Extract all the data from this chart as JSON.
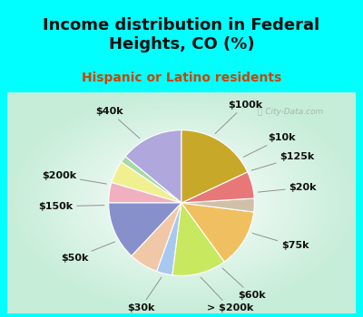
{
  "title": "Income distribution in Federal\nHeights, CO (%)",
  "subtitle": "Hispanic or Latino residents",
  "bg_color": "#00ffff",
  "chart_bg_top": "#e8f8f0",
  "chart_bg_bottom": "#c8ecd8",
  "watermark": "ⓘ City-Data.com",
  "slices": [
    {
      "label": "$100k",
      "value": 14.0,
      "color": "#b0a8dc"
    },
    {
      "label": "$10k",
      "value": 1.5,
      "color": "#a8d8a8"
    },
    {
      "label": "$125k",
      "value": 5.0,
      "color": "#f0f090"
    },
    {
      "label": "$20k",
      "value": 4.5,
      "color": "#f0b0c0"
    },
    {
      "label": "$75k",
      "value": 13.0,
      "color": "#8890cc"
    },
    {
      "label": "$60k",
      "value": 6.5,
      "color": "#f0c8a8"
    },
    {
      "label": "> $200k",
      "value": 3.5,
      "color": "#a8c8f0"
    },
    {
      "label": "$30k",
      "value": 12.0,
      "color": "#c8e860"
    },
    {
      "label": "$50k",
      "value": 13.0,
      "color": "#f0c060"
    },
    {
      "label": "$150k",
      "value": 3.0,
      "color": "#d0c0a8"
    },
    {
      "label": "$200k",
      "value": 6.0,
      "color": "#e87878"
    },
    {
      "label": "$40k",
      "value": 18.0,
      "color": "#c8a828"
    }
  ],
  "start_angle": 90,
  "label_fontsize": 8,
  "title_fontsize": 13,
  "subtitle_fontsize": 10,
  "title_color": "#111111",
  "subtitle_color": "#cc4400"
}
